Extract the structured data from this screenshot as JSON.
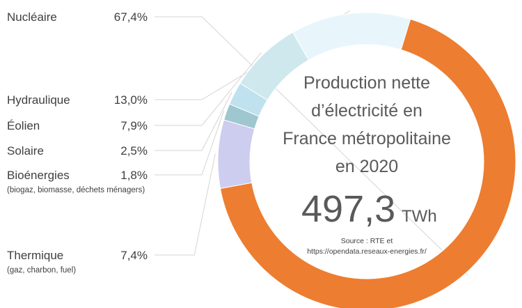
{
  "chart_data": {
    "type": "pie",
    "title": "Production nette d’électricité en France métropolitaine en 2020",
    "title_lines": [
      "Production nette",
      "d’électricité en",
      "France métropolitaine",
      "en 2020"
    ],
    "total": "497,3",
    "unit": "TWh",
    "source_lines": [
      "Source : RTE et",
      "https://opendata.reseaux-energies.fr/"
    ],
    "slices": [
      {
        "label": "Nucléaire",
        "value": 67.4,
        "value_text": "67,4%",
        "note": "",
        "color": "#ed7d31"
      },
      {
        "label": "Thermique",
        "value": 7.4,
        "value_text": "7,4%",
        "note": "(gaz, charbon, fuel)",
        "color": "#cdcdef"
      },
      {
        "label": "Bioénergies",
        "value": 1.8,
        "value_text": "1,8%",
        "note": "(biogaz, biomasse, déchets ménagers)",
        "color": "#9ec7cf"
      },
      {
        "label": "Solaire",
        "value": 2.5,
        "value_text": "2,5%",
        "note": "",
        "color": "#bfe2ee"
      },
      {
        "label": "Éolien",
        "value": 7.9,
        "value_text": "7,9%",
        "note": "",
        "color": "#cfe8ee"
      },
      {
        "label": "Hydraulique",
        "value": 13.0,
        "value_text": "13,0%",
        "note": "",
        "color": "#e8f6fc"
      }
    ]
  }
}
